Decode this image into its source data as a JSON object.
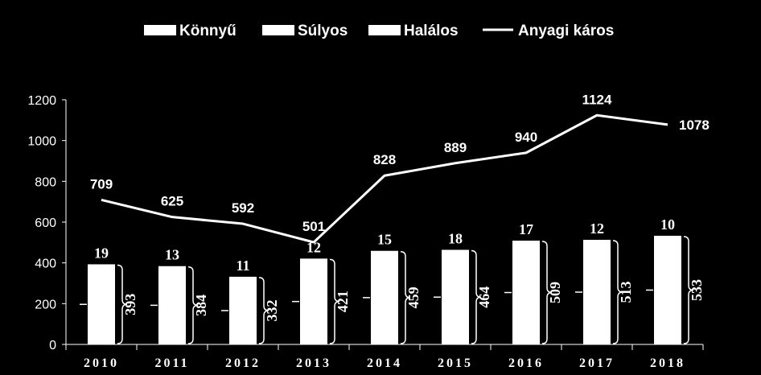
{
  "chart_data": {
    "type": "bar",
    "categories": [
      "2010",
      "2011",
      "2012",
      "2013",
      "2014",
      "2015",
      "2016",
      "2017",
      "2018"
    ],
    "series": [
      {
        "name": "Könnyű",
        "values": [
          393,
          384,
          332,
          421,
          459,
          464,
          509,
          513,
          533
        ],
        "kind": "bar"
      },
      {
        "name": "Súlyos",
        "values": [
          19,
          13,
          11,
          12,
          15,
          18,
          17,
          12,
          10
        ],
        "kind": "bar-label"
      },
      {
        "name": "Halálos",
        "values": [
          null,
          null,
          null,
          null,
          null,
          null,
          null,
          null,
          null
        ],
        "kind": "legend-only"
      },
      {
        "name": "Anyagi káros",
        "values": [
          709,
          625,
          592,
          501,
          828,
          889,
          940,
          1124,
          1078
        ],
        "kind": "line"
      }
    ],
    "ylim": [
      0,
      1200
    ],
    "yticks": [
      0,
      200,
      400,
      600,
      800,
      1000,
      1200
    ],
    "legend_position": "top",
    "grid": false,
    "colors": {
      "background": "#000000",
      "bar": "#ffffff",
      "line": "#ffffff",
      "text": "#ffffff"
    }
  }
}
